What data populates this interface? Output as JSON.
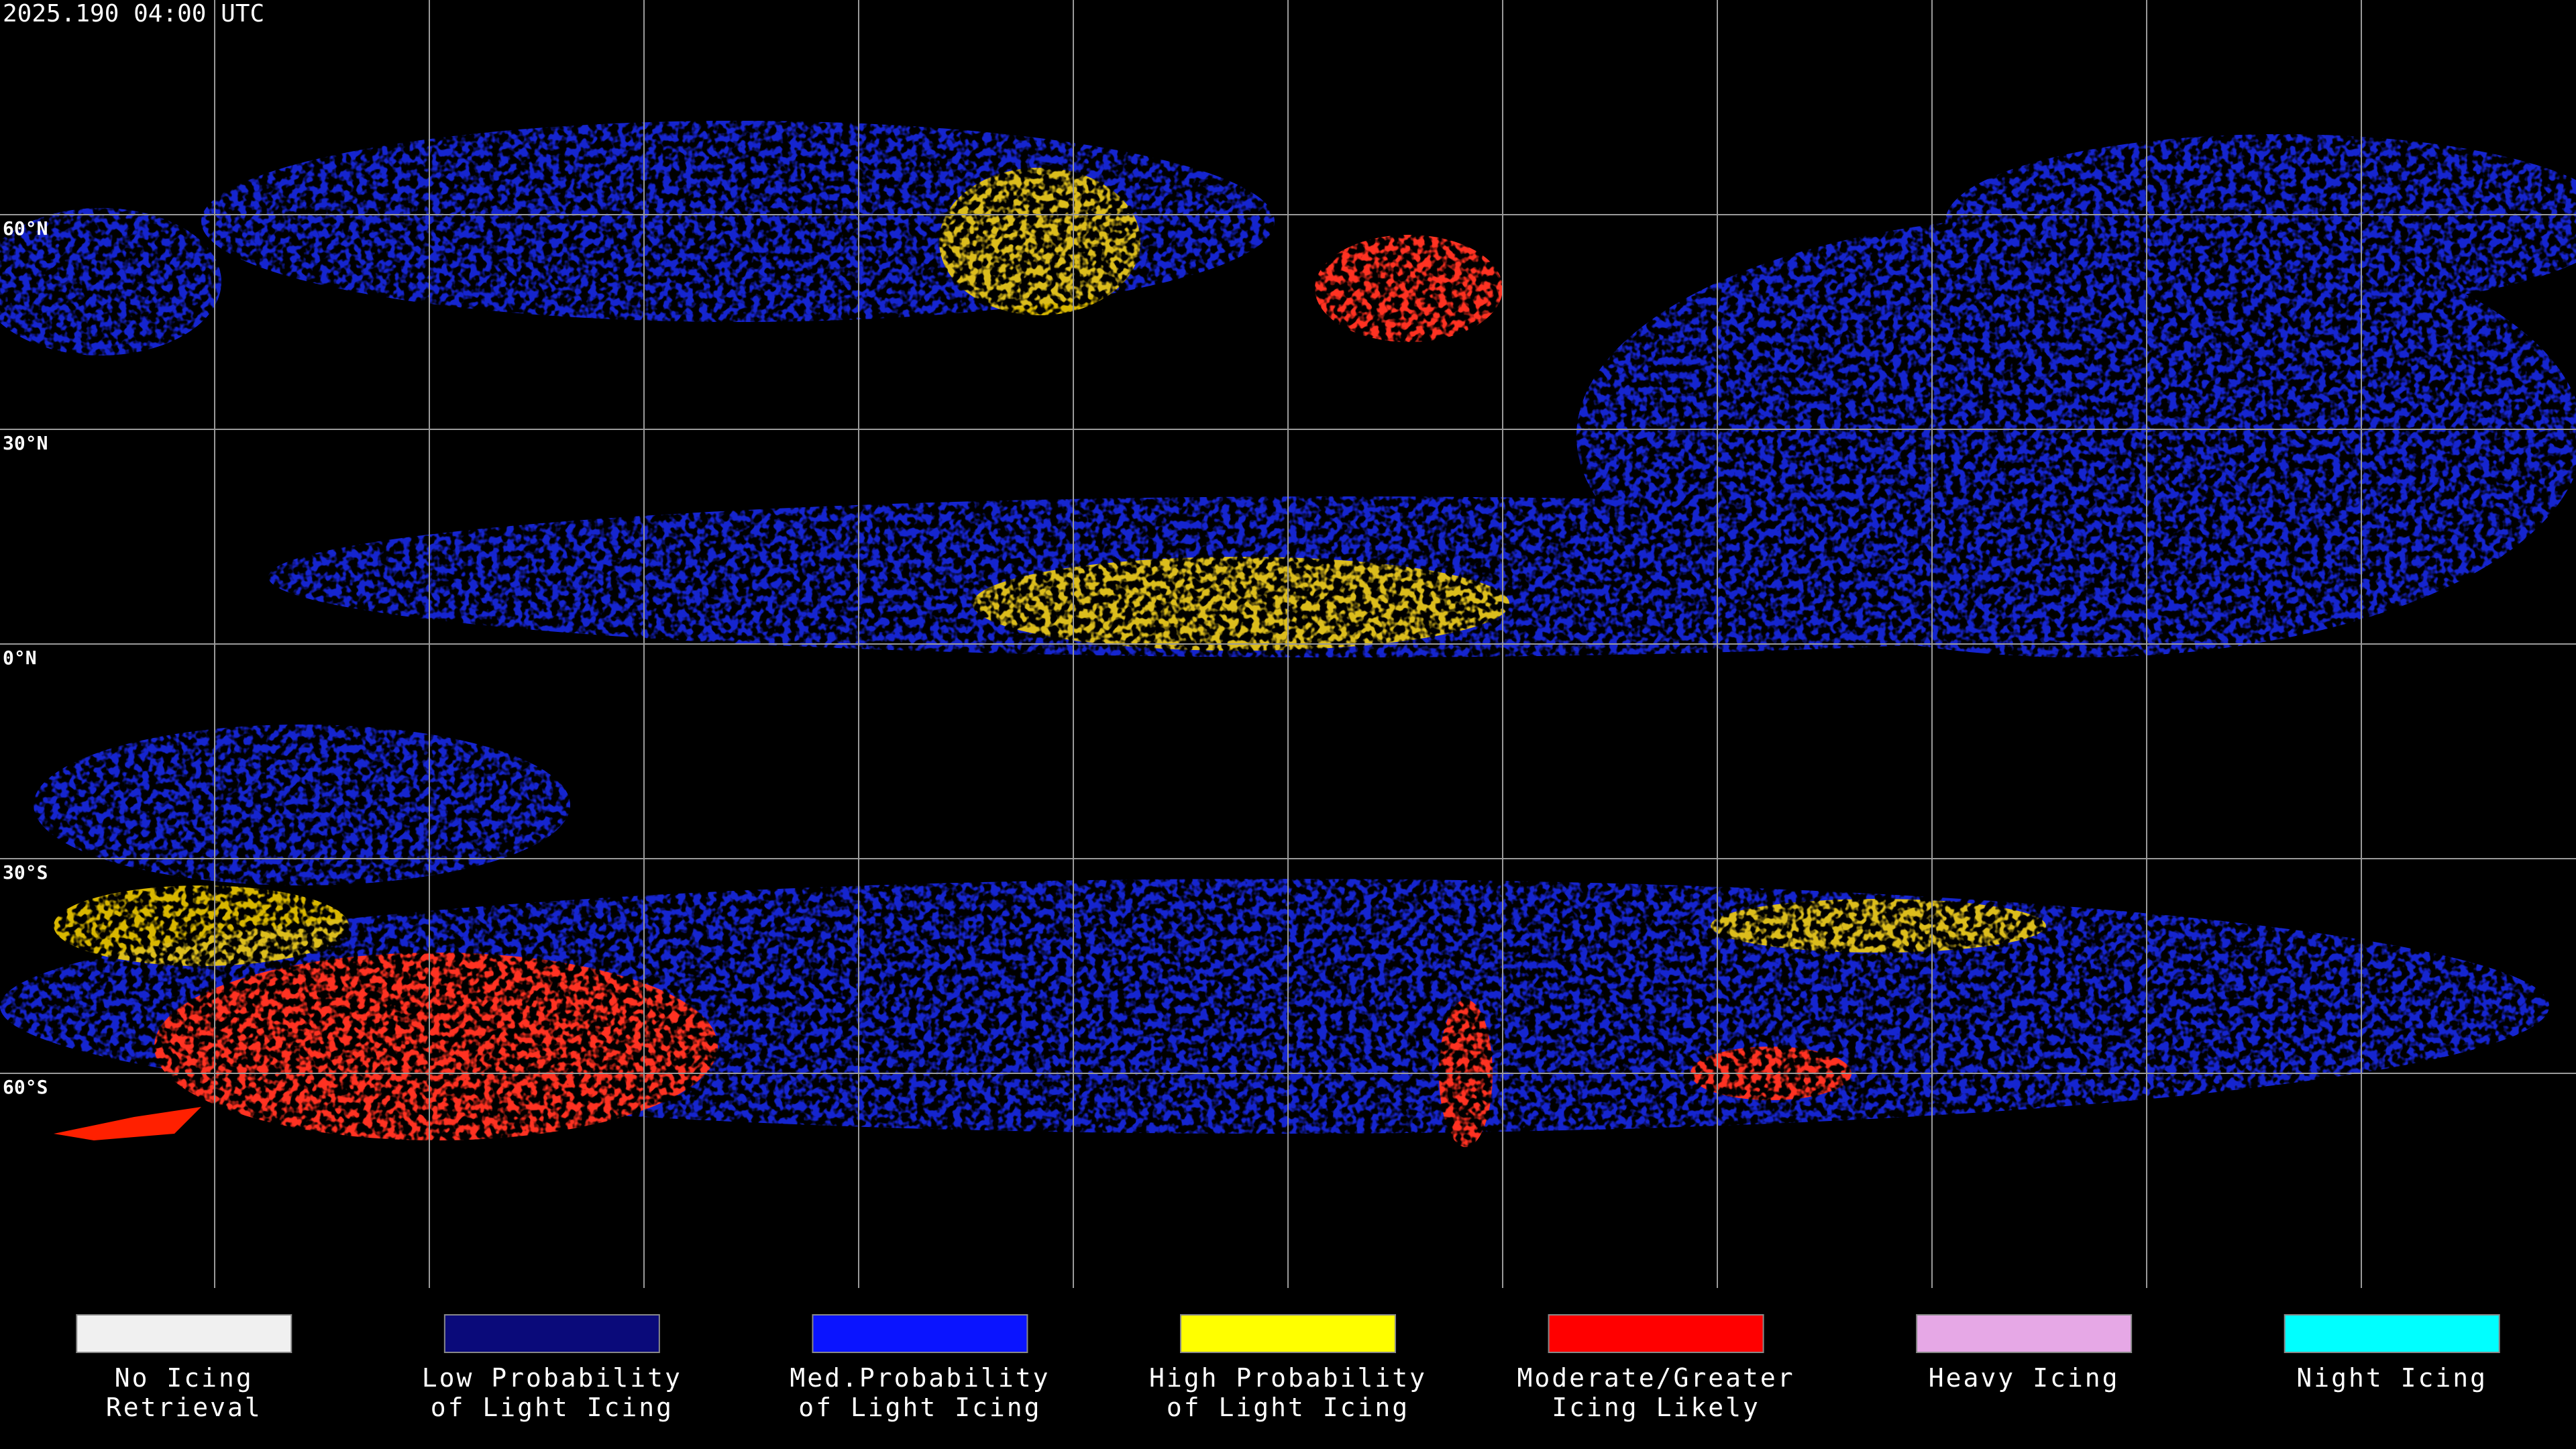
{
  "header": {
    "timestamp": "2025.190 04:00 UTC"
  },
  "map": {
    "lat_labels": [
      "60°N",
      "30°N",
      "0°N",
      "30°S",
      "60°S"
    ]
  },
  "legend": [
    {
      "color": "#f0f0f0",
      "lines": [
        "No Icing",
        "Retrieval"
      ]
    },
    {
      "color": "#0a0a7a",
      "lines": [
        "Low Probability",
        "of Light Icing"
      ]
    },
    {
      "color": "#0a14ff",
      "lines": [
        "Med.Probability",
        "of Light Icing"
      ]
    },
    {
      "color": "#ffff00",
      "lines": [
        "High Probability",
        "of Light Icing"
      ]
    },
    {
      "color": "#ff0000",
      "lines": [
        "Moderate/Greater",
        "Icing Likely"
      ]
    },
    {
      "color": "#e6a8e6",
      "lines": [
        "Heavy Icing"
      ]
    },
    {
      "color": "#00ffff",
      "lines": [
        "Night Icing"
      ]
    }
  ]
}
